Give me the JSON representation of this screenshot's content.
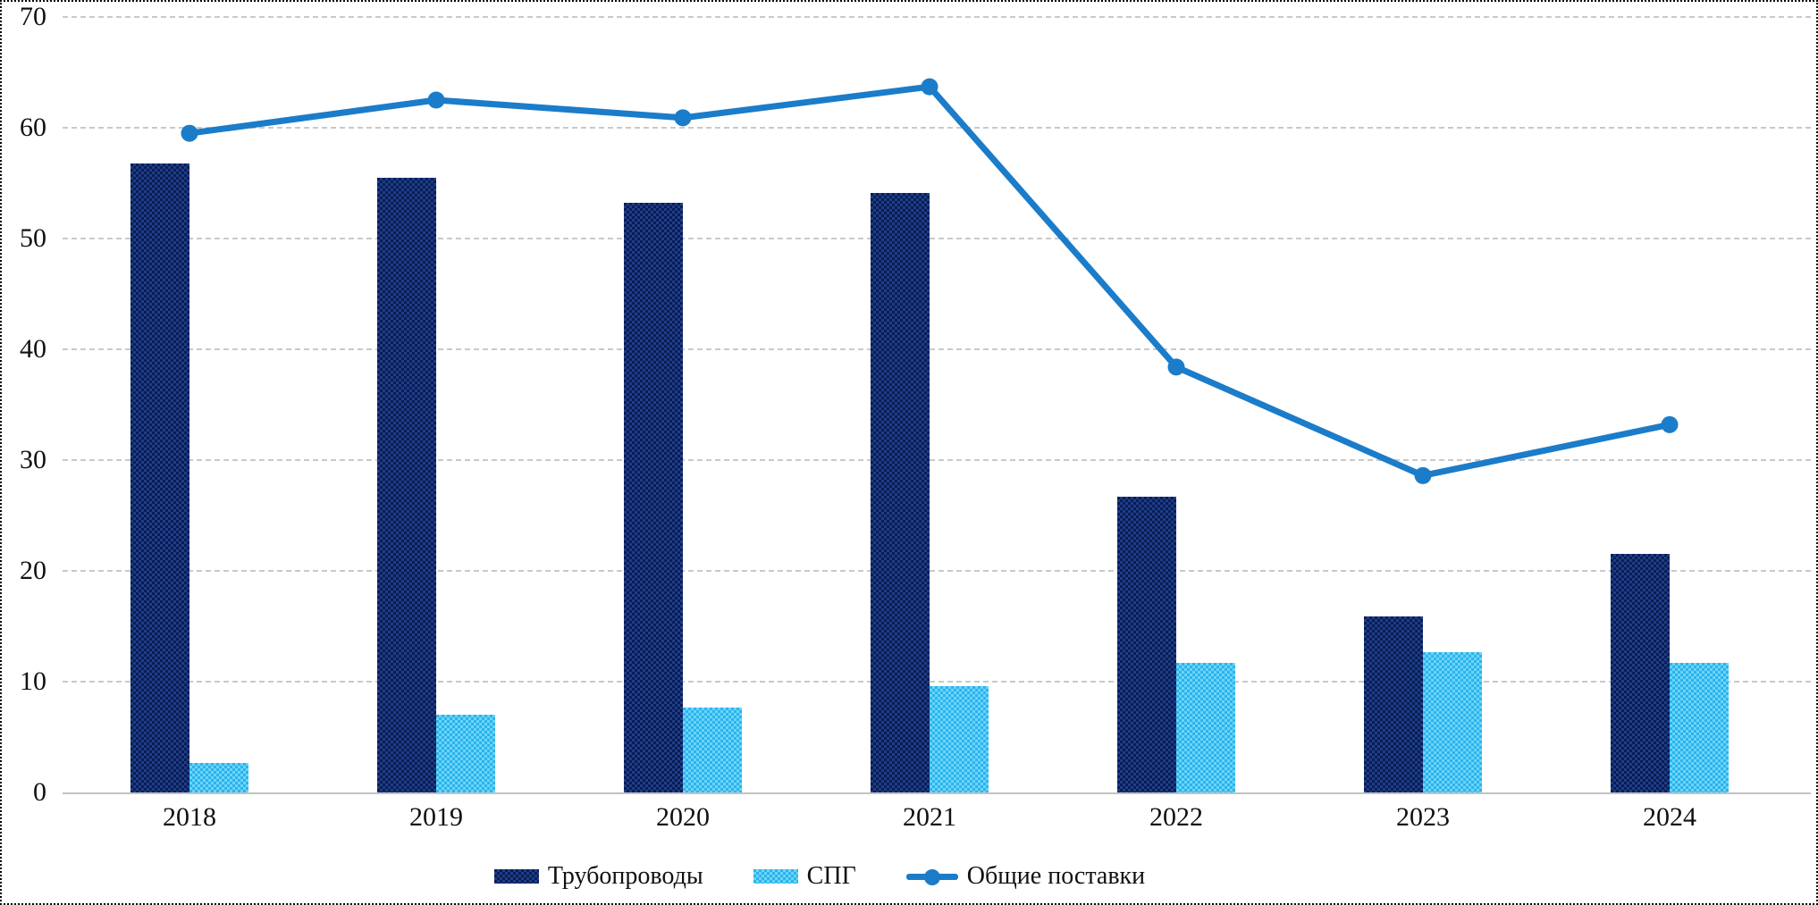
{
  "chart_data": {
    "type": "bar",
    "subtype": "grouped-bars-with-line",
    "title": "",
    "xlabel": "",
    "ylabel": "",
    "categories": [
      "2018",
      "2019",
      "2020",
      "2021",
      "2022",
      "2023",
      "2024"
    ],
    "series": [
      {
        "name": "Трубопроводы",
        "type": "bar",
        "color_base": "#0a1d52",
        "color_pattern": "#1e3d8a",
        "values": [
          56.8,
          55.5,
          53.2,
          54.1,
          26.7,
          15.9,
          21.5
        ]
      },
      {
        "name": "СПГ",
        "type": "bar",
        "color_base": "#29b4ee",
        "color_pattern": "#6dd4f7",
        "values": [
          2.7,
          7.0,
          7.7,
          9.6,
          11.7,
          12.7,
          11.7
        ]
      },
      {
        "name": "Общие поставки",
        "type": "line",
        "color": "#1b7cc9",
        "marker": "circle",
        "values": [
          59.5,
          62.5,
          60.9,
          63.7,
          38.4,
          28.6,
          33.2
        ]
      }
    ],
    "ylim": [
      0,
      70
    ],
    "yticks": [
      0,
      10,
      20,
      30,
      40,
      50,
      60,
      70
    ],
    "grid": "horizontal-dashed",
    "legend_position": "bottom"
  },
  "colors": {
    "gridline": "#c9c9c9",
    "axis_line": "#c2c2c2",
    "text": "#111111",
    "frame_border": "#000000",
    "background": "#ffffff"
  }
}
